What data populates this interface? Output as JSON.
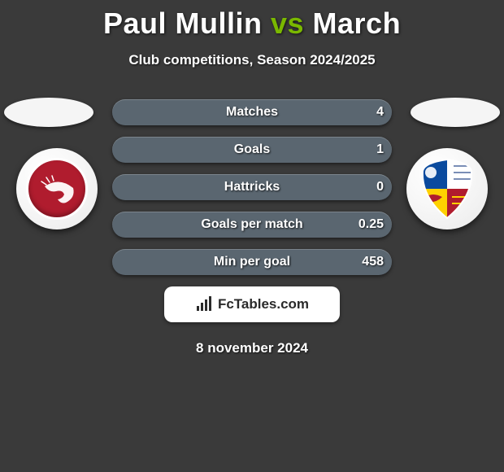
{
  "header": {
    "title_player1": "Paul Mullin",
    "title_vs": "vs",
    "title_player2": "March",
    "subtitle": "Club competitions, Season 2024/2025",
    "accent_color": "#7ab800"
  },
  "side": {
    "ellipse_bg": "#f5f5f5"
  },
  "crest_left": {
    "bg": "#b01c2e",
    "inner_stroke": "#ffffff",
    "shrimp_fill": "#ffffff"
  },
  "crest_right": {
    "panel_tl": "#0a4a9e",
    "panel_tr": "#ffffff",
    "panel_bl": "#ffd100",
    "panel_br": "#b01c2e",
    "border": "#ffffff"
  },
  "stats": {
    "bar_color_left": "#5a6670",
    "bar_color_right": "#5a6670",
    "full_width": 344,
    "rows": [
      {
        "label": "Matches",
        "left_w": 0,
        "right_w": 344,
        "right_val": "4"
      },
      {
        "label": "Goals",
        "left_w": 0,
        "right_w": 344,
        "right_val": "1"
      },
      {
        "label": "Hattricks",
        "left_w": 0,
        "right_w": 344,
        "right_val": "0"
      },
      {
        "label": "Goals per match",
        "left_w": 0,
        "right_w": 344,
        "right_val": "0.25"
      },
      {
        "label": "Min per goal",
        "left_w": 0,
        "right_w": 344,
        "right_val": "458"
      }
    ]
  },
  "footer": {
    "badge_bg": "#ffffff",
    "badge_text": "FcTables.com",
    "badge_text_color": "#2a2a2a",
    "icon_color": "#2a2a2a",
    "date": "8 november 2024"
  }
}
